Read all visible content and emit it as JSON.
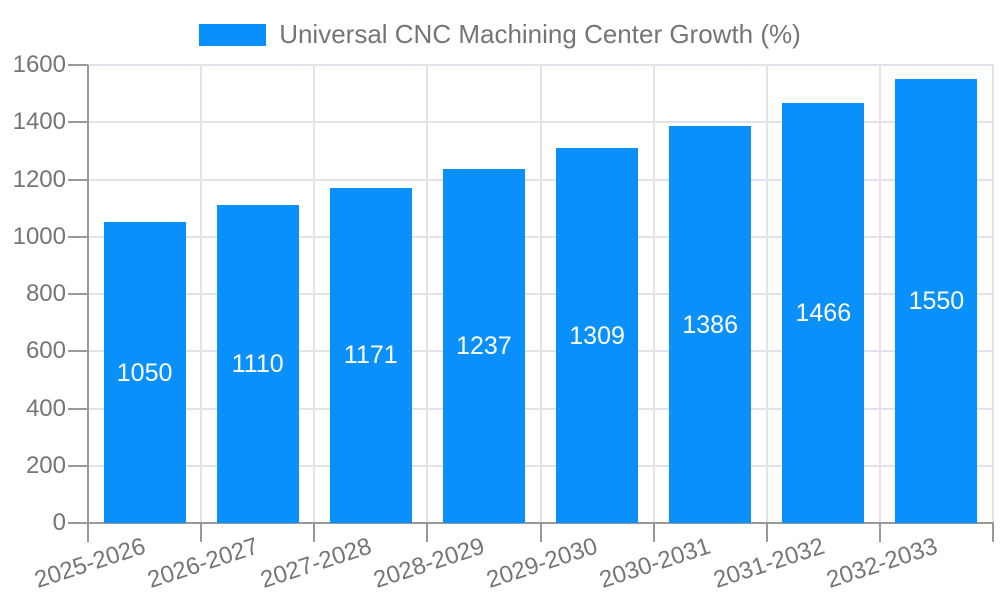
{
  "chart_data": {
    "type": "bar",
    "title": "Universal CNC Machining Center Growth (%)",
    "legend": [
      "Universal CNC Machining Center Growth (%)"
    ],
    "legend_position": "top-center",
    "categories": [
      "2025-2026",
      "2026-2027",
      "2027-2028",
      "2028-2029",
      "2029-2030",
      "2030-2031",
      "2031-2032",
      "2032-2033"
    ],
    "values": [
      1050,
      1110,
      1171,
      1237,
      1309,
      1386,
      1466,
      1550
    ],
    "xlabel": "",
    "ylabel": "",
    "ylim": [
      0,
      1600
    ],
    "yticks": [
      0,
      200,
      400,
      600,
      800,
      1000,
      1200,
      1400,
      1600
    ],
    "grid": true,
    "value_labels_shown": true,
    "x_label_rotation_deg": -18,
    "colors": {
      "bar": "#0a90fa",
      "axis_line": "#999999",
      "grid_line": "#e2e2e8",
      "axis_text": "#757575",
      "value_label_text": "#ffffff",
      "background": "#ffffff"
    }
  }
}
